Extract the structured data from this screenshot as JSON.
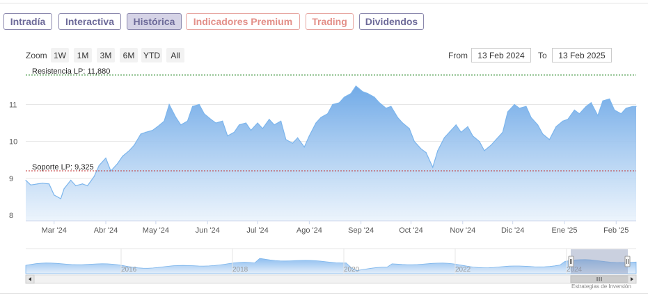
{
  "tabs": [
    {
      "label": "Intradía",
      "state": "normal"
    },
    {
      "label": "Interactiva",
      "state": "normal"
    },
    {
      "label": "Histórica",
      "state": "active"
    },
    {
      "label": "Indicadores Premium",
      "state": "premium"
    },
    {
      "label": "Trading",
      "state": "premium"
    },
    {
      "label": "Dividendos",
      "state": "normal"
    }
  ],
  "zoom": {
    "label": "Zoom",
    "buttons": [
      "1W",
      "1M",
      "3M",
      "6M",
      "YTD",
      "All"
    ]
  },
  "range": {
    "from_label": "From",
    "from_value": "13 Feb 2024",
    "to_label": "To",
    "to_value": "13 Feb 2025"
  },
  "credit": "Estrategias de Inversión",
  "colors": {
    "accent": "#6d6a99",
    "premium": "#e38f88",
    "area_top": "#6aa6e6",
    "area_bottom": "#eaf3fc",
    "line": "#7cb5ec",
    "resistance": "#2e8b2e",
    "support": "#c03030"
  },
  "chart_data": {
    "type": "area",
    "title": "",
    "xlabel": "",
    "ylabel": "",
    "y_ticks": [
      "8",
      "9",
      "10",
      "11"
    ],
    "x_ticks": [
      "Mar '24",
      "Abr '24",
      "May '24",
      "Jun '24",
      "Jul '24",
      "Ago '24",
      "Sep '24",
      "Oct '24",
      "Nov '24",
      "Dic '24",
      "Ene '25",
      "Feb '25"
    ],
    "ylim": [
      7.85,
      11.95
    ],
    "xlim": [
      "2024-02-13",
      "2025-02-13"
    ],
    "grid": "horizontal",
    "annotations": [
      {
        "label": "Resistencia LP: 11,880",
        "y": 11.88,
        "style": "dotted",
        "color": "green"
      },
      {
        "label": "Soporte LP: 9,325",
        "y": 9.325,
        "style": "dotted",
        "color": "red"
      }
    ],
    "series": [
      {
        "x": [
          "2024-02-13",
          "2024-02-16",
          "2024-02-20",
          "2024-02-23",
          "2024-02-27",
          "2024-03-01",
          "2024-03-05",
          "2024-03-07",
          "2024-03-11",
          "2024-03-14",
          "2024-03-18",
          "2024-03-21",
          "2024-03-25",
          "2024-03-28",
          "2024-04-01",
          "2024-04-04",
          "2024-04-08",
          "2024-04-11",
          "2024-04-15",
          "2024-04-18",
          "2024-04-22",
          "2024-04-25",
          "2024-04-29",
          "2024-05-02",
          "2024-05-06",
          "2024-05-09",
          "2024-05-13",
          "2024-05-16",
          "2024-05-20",
          "2024-05-23",
          "2024-05-27",
          "2024-05-30",
          "2024-06-03",
          "2024-06-06",
          "2024-06-10",
          "2024-06-13",
          "2024-06-17",
          "2024-06-20",
          "2024-06-24",
          "2024-06-27",
          "2024-07-01",
          "2024-07-04",
          "2024-07-08",
          "2024-07-11",
          "2024-07-15",
          "2024-07-18",
          "2024-07-22",
          "2024-07-25",
          "2024-07-29",
          "2024-08-01",
          "2024-08-05",
          "2024-08-08",
          "2024-08-12",
          "2024-08-15",
          "2024-08-19",
          "2024-08-22",
          "2024-08-26",
          "2024-08-29",
          "2024-09-02",
          "2024-09-05",
          "2024-09-09",
          "2024-09-12",
          "2024-09-16",
          "2024-09-19",
          "2024-09-23",
          "2024-09-26",
          "2024-09-30",
          "2024-10-03",
          "2024-10-07",
          "2024-10-10",
          "2024-10-14",
          "2024-10-17",
          "2024-10-21",
          "2024-10-24",
          "2024-10-28",
          "2024-10-31",
          "2024-11-04",
          "2024-11-07",
          "2024-11-11",
          "2024-11-14",
          "2024-11-18",
          "2024-11-21",
          "2024-11-25",
          "2024-11-28",
          "2024-12-02",
          "2024-12-05",
          "2024-12-09",
          "2024-12-12",
          "2024-12-16",
          "2024-12-19",
          "2024-12-23",
          "2024-12-27",
          "2024-12-31",
          "2025-01-03",
          "2025-01-07",
          "2025-01-10",
          "2025-01-14",
          "2025-01-17",
          "2025-01-21",
          "2025-01-24",
          "2025-01-28",
          "2025-01-31",
          "2025-02-04",
          "2025-02-07",
          "2025-02-11",
          "2025-02-13"
        ],
        "values": [
          8.95,
          8.82,
          8.85,
          8.87,
          8.85,
          8.55,
          8.45,
          8.72,
          8.95,
          8.8,
          8.85,
          8.8,
          9.05,
          9.35,
          9.55,
          9.2,
          9.4,
          9.6,
          9.75,
          9.9,
          10.2,
          10.25,
          10.3,
          10.4,
          10.55,
          11.0,
          10.65,
          10.45,
          10.55,
          10.95,
          11.0,
          10.75,
          10.6,
          10.5,
          10.55,
          10.15,
          10.25,
          10.45,
          10.5,
          10.3,
          10.5,
          10.35,
          10.6,
          10.45,
          10.55,
          10.05,
          9.95,
          10.1,
          9.85,
          10.15,
          10.5,
          10.65,
          10.75,
          11.0,
          11.05,
          11.2,
          11.3,
          11.5,
          11.35,
          11.3,
          11.2,
          11.05,
          10.9,
          10.95,
          10.65,
          10.5,
          10.35,
          10.0,
          9.8,
          9.7,
          9.3,
          9.75,
          10.1,
          10.25,
          10.45,
          10.25,
          10.4,
          10.15,
          10.0,
          9.75,
          9.9,
          10.05,
          10.25,
          10.8,
          11.0,
          10.9,
          10.95,
          10.65,
          10.45,
          10.2,
          10.05,
          10.4,
          10.55,
          10.6,
          10.85,
          10.75,
          10.95,
          11.05,
          10.7,
          11.1,
          11.15,
          10.85,
          10.75,
          10.9,
          10.95,
          10.95
        ]
      }
    ],
    "navigator": {
      "x_ticks": [
        "2016",
        "2018",
        "2020",
        "2022",
        "2024"
      ]
    }
  }
}
